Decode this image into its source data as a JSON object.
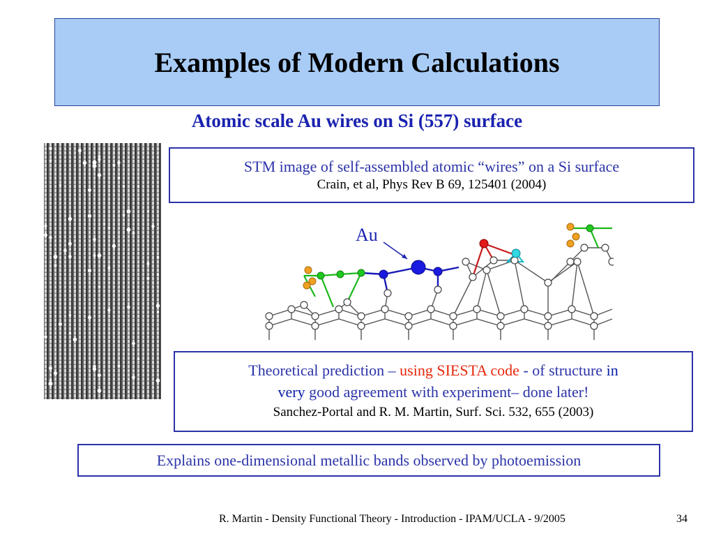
{
  "title": "Examples of Modern Calculations",
  "subtitle": "Atomic scale Au wires on Si  (557) surface",
  "box1": {
    "main": "STM image of self-assembled atomic “wires” on a Si surface",
    "citation": "Crain, et al, Phys Rev B 69, 125401 (2004)"
  },
  "au_label": "Au",
  "box2": {
    "part1": "Theoretical prediction – ",
    "part2": "using SIESTA code",
    "part3": " - of structure ",
    "part4": "in",
    "part5": "very",
    "part6": " good agreement with experiment– done later!",
    "citation": "Sanchez-Portal and R. M. Martin, Surf. Sci. 532, 655 (2003)"
  },
  "box3": {
    "text": "Explains one-dimensional metallic bands observed  by photoemission"
  },
  "footer": {
    "text": "R. Martin - Density Functional Theory - Introduction - IPAM/UCLA - 9/2005",
    "page": "34"
  },
  "colors": {
    "title_bg": "#a8ccf6",
    "box_border": "#2b33a8",
    "blue_text": "#2b33a8",
    "dark_blue": "#0a1fa8",
    "red_text": "#e8280c"
  }
}
